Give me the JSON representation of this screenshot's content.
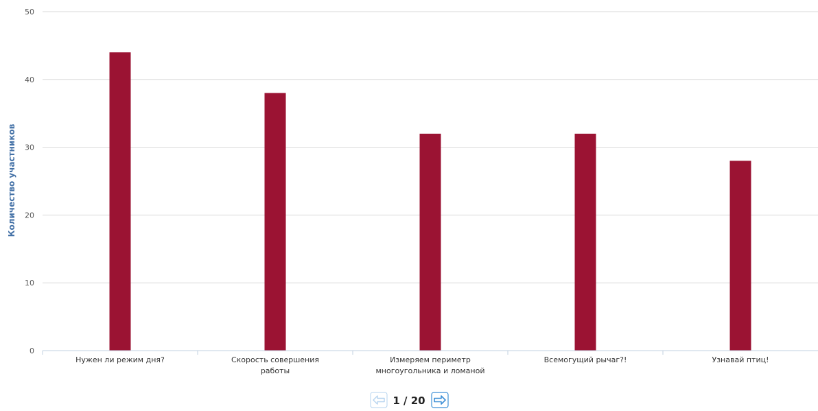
{
  "chart_data": {
    "type": "bar",
    "title": "",
    "xlabel": "",
    "ylabel": "Количество участников",
    "ylim": [
      0,
      50
    ],
    "yticks": [
      0,
      10,
      20,
      30,
      40,
      50
    ],
    "grid": true,
    "categories": [
      [
        "Нужен ли режим дня?"
      ],
      [
        "Скорость совершения",
        "работы"
      ],
      [
        "Измеряем периметр",
        "многоугольника и ломаной"
      ],
      [
        "Всемогущий рычаг?!"
      ],
      [
        "Узнавай птиц!"
      ]
    ],
    "series": [
      {
        "values": [
          44,
          38,
          32,
          32,
          28
        ],
        "color": "#9b1333"
      }
    ]
  },
  "pager": {
    "text": "1 / 20",
    "prev_icon": "arrow-left-icon",
    "next_icon": "arrow-right-icon",
    "prev_enabled": false,
    "next_enabled": true
  },
  "colors": {
    "bar": "#9b1333",
    "grid": "#d8d8d8",
    "axis": "#c0d0e0",
    "axis_title": "#4572a7",
    "nav_enabled": "#3d8fd6",
    "nav_disabled": "#b5d3ef"
  }
}
